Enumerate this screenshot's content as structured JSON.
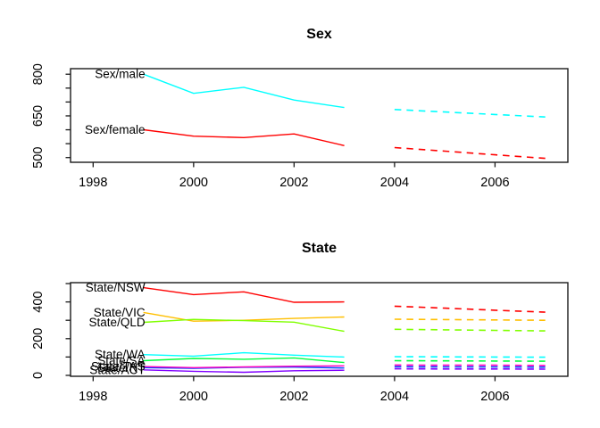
{
  "figure": {
    "background": "#ffffff",
    "text_color": "#000000",
    "frame_color": "#1a1a1a"
  },
  "chart_data": [
    {
      "type": "line",
      "title": "Sex",
      "x": [
        1999,
        2000,
        2001,
        2002,
        2003
      ],
      "forecast_x": [
        2004,
        2005,
        2006,
        2007
      ],
      "xlim": [
        1997.55,
        2007.45
      ],
      "ylim": [
        483,
        820
      ],
      "xticks": [
        1998,
        2000,
        2002,
        2004,
        2006
      ],
      "xtick_labels": [
        "1998",
        "2000",
        "2002",
        "2004",
        "2006"
      ],
      "yticks": [
        500,
        550,
        600,
        650,
        700,
        750,
        800
      ],
      "ytick_labels": [
        "500",
        "",
        "",
        "650",
        "",
        "",
        "800"
      ],
      "grid": false,
      "legend": "inline-labels",
      "history_style": "solid",
      "forecast_style": "dashed",
      "series": [
        {
          "name": "Sex/male",
          "label": "Sex/male",
          "color": "#00FFFF",
          "history": [
            800,
            731,
            753,
            707,
            680
          ],
          "forecast": [
            673,
            664,
            655,
            646
          ]
        },
        {
          "name": "Sex/female",
          "label": "Sex/female",
          "color": "#FF0000",
          "history": [
            600,
            577,
            572,
            585,
            543
          ],
          "forecast": [
            536,
            523,
            510,
            497
          ]
        }
      ]
    },
    {
      "type": "line",
      "title": "State",
      "x": [
        1999,
        2000,
        2001,
        2002,
        2003
      ],
      "forecast_x": [
        2004,
        2005,
        2006,
        2007
      ],
      "xlim": [
        1997.55,
        2007.45
      ],
      "ylim": [
        -5,
        505
      ],
      "xticks": [
        1998,
        2000,
        2002,
        2004,
        2006
      ],
      "xtick_labels": [
        "1998",
        "2000",
        "2002",
        "2004",
        "2006"
      ],
      "yticks": [
        0,
        100,
        200,
        300,
        400,
        500
      ],
      "ytick_labels": [
        "0",
        "",
        "200",
        "",
        "400",
        ""
      ],
      "grid": false,
      "legend": "inline-labels",
      "history_style": "solid",
      "forecast_style": "dashed",
      "series": [
        {
          "name": "State/NSW",
          "label": "State/NSW",
          "color": "#FF0000",
          "history": [
            478,
            440,
            455,
            398,
            400
          ],
          "forecast": [
            377,
            366,
            355,
            344
          ]
        },
        {
          "name": "State/VIC",
          "label": "State/VIC",
          "color": "#FFBF00",
          "history": [
            343,
            295,
            300,
            310,
            318
          ],
          "forecast": [
            306,
            304,
            302,
            300
          ]
        },
        {
          "name": "State/QLD",
          "label": "State/QLD",
          "color": "#80FF00",
          "history": [
            289,
            305,
            298,
            290,
            240
          ],
          "forecast": [
            251,
            248,
            245,
            242
          ]
        },
        {
          "name": "State/SA",
          "label": "State/SA",
          "color": "#00FF40",
          "history": [
            80,
            92,
            88,
            95,
            70
          ],
          "forecast": [
            80,
            79,
            78,
            77
          ]
        },
        {
          "name": "State/WA",
          "label": "State/WA",
          "color": "#00FFFF",
          "history": [
            113,
            105,
            123,
            110,
            100
          ],
          "forecast": [
            102,
            101,
            100,
            99
          ]
        },
        {
          "name": "State/NT",
          "label": "State/NT",
          "color": "#0040FF",
          "history": [
            42,
            38,
            44,
            45,
            40
          ],
          "forecast": [
            47,
            46,
            46,
            45
          ]
        },
        {
          "name": "State/ACT",
          "label": "State/ACT",
          "color": "#8000FF",
          "history": [
            30,
            22,
            17,
            25,
            28
          ],
          "forecast": [
            36,
            35,
            35,
            34
          ]
        },
        {
          "name": "State/TAS",
          "label": "State/TAS",
          "color": "#FF00BF",
          "history": [
            48,
            42,
            46,
            50,
            52
          ],
          "forecast": [
            56,
            55,
            55,
            54
          ]
        }
      ]
    }
  ]
}
